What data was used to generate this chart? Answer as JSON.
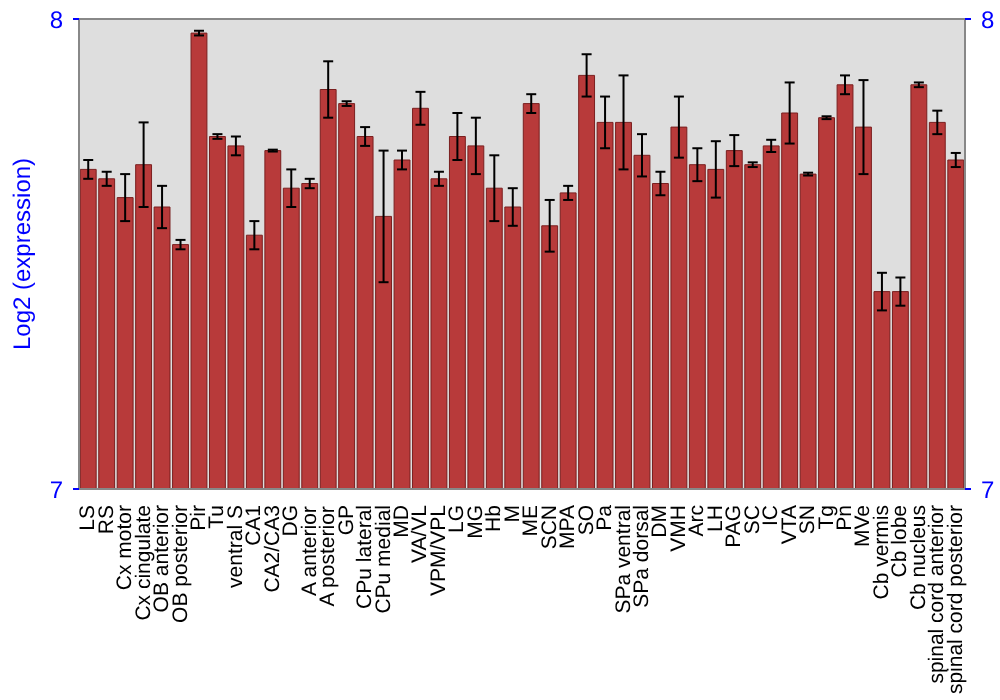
{
  "chart_data": {
    "type": "bar",
    "ylabel": "Log2 (expression)",
    "categories": [
      "LS",
      "RS",
      "Cx motor",
      "Cx cingulate",
      "OB anterior",
      "OB posterior",
      "Pir",
      "Tu",
      "ventral S",
      "CA1",
      "CA2/CA3",
      "DG",
      "A anterior",
      "A posterior",
      "GP",
      "CPu lateral",
      "CPu medial",
      "MD",
      "VA/VL",
      "VPM/VPL",
      "LG",
      "MG",
      "Hb",
      "M",
      "ME",
      "SCN",
      "MPA",
      "SO",
      "Pa",
      "SPa ventral",
      "SPa dorsal",
      "DM",
      "VMH",
      "Arc",
      "LH",
      "PAG",
      "SC",
      "IC",
      "VTA",
      "SN",
      "Tg",
      "Pn",
      "MVe",
      "Cb vermis",
      "Cb lobe",
      "Cb nucleus",
      "spinal cord anterior",
      "spinal cord posterior"
    ],
    "values": [
      7.68,
      7.66,
      7.62,
      7.69,
      7.6,
      7.52,
      7.97,
      7.75,
      7.73,
      7.54,
      7.72,
      7.64,
      7.65,
      7.85,
      7.82,
      7.75,
      7.58,
      7.7,
      7.81,
      7.66,
      7.75,
      7.73,
      7.64,
      7.6,
      7.82,
      7.56,
      7.63,
      7.88,
      7.78,
      7.78,
      7.71,
      7.65,
      7.77,
      7.69,
      7.68,
      7.72,
      7.69,
      7.73,
      7.8,
      7.67,
      7.79,
      7.86,
      7.77,
      7.42,
      7.42,
      7.86,
      7.78,
      7.7
    ],
    "errors": [
      0.02,
      0.015,
      0.05,
      0.09,
      0.045,
      0.01,
      0.005,
      0.005,
      0.02,
      0.03,
      0.002,
      0.04,
      0.01,
      0.06,
      0.005,
      0.02,
      0.14,
      0.02,
      0.035,
      0.015,
      0.05,
      0.06,
      0.07,
      0.04,
      0.02,
      0.055,
      0.015,
      0.045,
      0.055,
      0.1,
      0.045,
      0.025,
      0.065,
      0.035,
      0.06,
      0.033,
      0.005,
      0.013,
      0.065,
      0.003,
      0.003,
      0.02,
      0.1,
      0.04,
      0.03,
      0.005,
      0.025,
      0.015
    ],
    "color": "#b83a3a",
    "ylim": [
      7,
      8
    ],
    "yticks": [
      7,
      8
    ],
    "y2lim": [
      7,
      8
    ],
    "y2ticks": [
      7,
      8
    ],
    "grid": false
  }
}
